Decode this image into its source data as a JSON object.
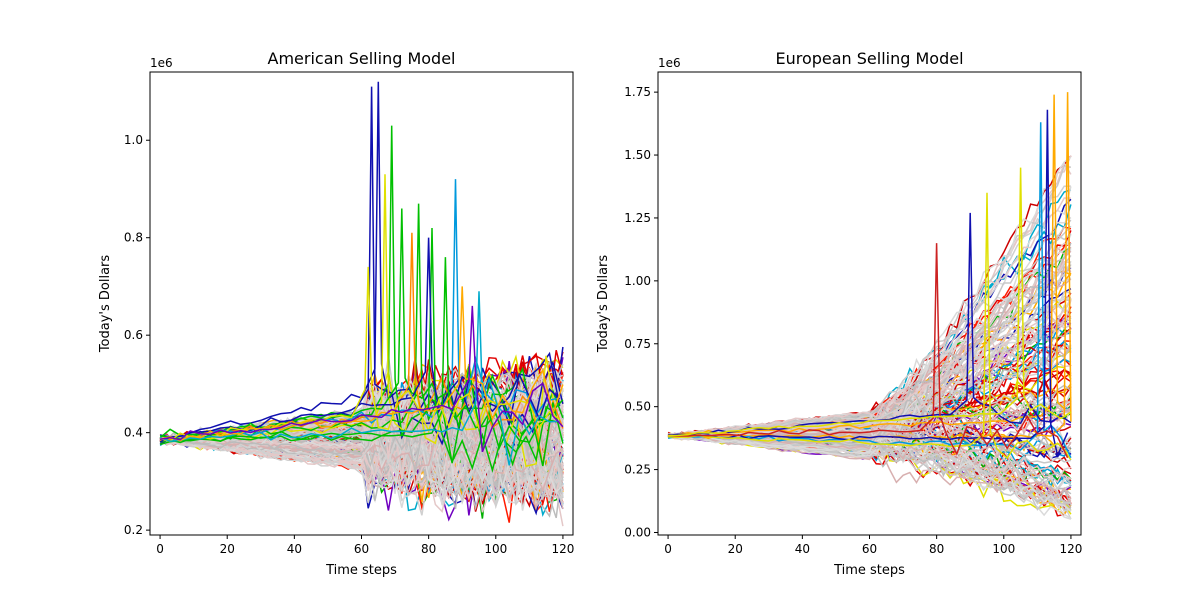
{
  "chart_data": [
    {
      "type": "line",
      "title": "American Selling Model",
      "xlabel": "Time steps",
      "ylabel": "Today's Dollars",
      "offset_text": "1e6",
      "xlim": [
        -3,
        123
      ],
      "ylim": [
        0.19,
        1.14
      ],
      "xticks": [
        0,
        20,
        40,
        60,
        80,
        100,
        120
      ],
      "xtick_labels": [
        "0",
        "20",
        "40",
        "60",
        "80",
        "100",
        "120"
      ],
      "yticks": [
        0.2,
        0.4,
        0.6,
        0.8,
        1.0
      ],
      "ytick_labels": [
        "0.2",
        "0.4",
        "0.6",
        "0.8",
        "1.0"
      ],
      "grid": false,
      "start_value": 0.385,
      "jump_step": 60,
      "end_step": 120,
      "pre_jump_range": [
        0.35,
        0.47
      ],
      "post_jump_range": [
        0.27,
        0.6
      ],
      "spikes": [
        {
          "x": 63,
          "y": 1.11,
          "color": "#1010b0"
        },
        {
          "x": 65,
          "y": 1.12,
          "color": "#1010b0"
        },
        {
          "x": 69,
          "y": 1.03,
          "color": "#00c000"
        },
        {
          "x": 67,
          "y": 0.93,
          "color": "#e0e000"
        },
        {
          "x": 72,
          "y": 0.86,
          "color": "#00c000"
        },
        {
          "x": 77,
          "y": 0.87,
          "color": "#00c000"
        },
        {
          "x": 75,
          "y": 0.81,
          "color": "#ff8800"
        },
        {
          "x": 88,
          "y": 0.92,
          "color": "#0099dd"
        },
        {
          "x": 81,
          "y": 0.82,
          "color": "#00c000"
        },
        {
          "x": 80,
          "y": 0.8,
          "color": "#1010b0"
        },
        {
          "x": 85,
          "y": 0.76,
          "color": "#00c000"
        },
        {
          "x": 62,
          "y": 0.74,
          "color": "#e0e000"
        },
        {
          "x": 95,
          "y": 0.69,
          "color": "#00aacc"
        },
        {
          "x": 90,
          "y": 0.7,
          "color": "#ffaa00"
        },
        {
          "x": 93,
          "y": 0.66,
          "color": "#7000c0"
        }
      ]
    },
    {
      "type": "line",
      "title": "European Selling Model",
      "xlabel": "Time steps",
      "ylabel": "Today's Dollars",
      "offset_text": "1e6",
      "xlim": [
        -3,
        123
      ],
      "ylim": [
        -0.01,
        1.83
      ],
      "xticks": [
        0,
        20,
        40,
        60,
        80,
        100,
        120
      ],
      "xtick_labels": [
        "0",
        "20",
        "40",
        "60",
        "80",
        "100",
        "120"
      ],
      "yticks": [
        0.0,
        0.25,
        0.5,
        0.75,
        1.0,
        1.25,
        1.5,
        1.75
      ],
      "ytick_labels": [
        "0.00",
        "0.25",
        "0.50",
        "0.75",
        "1.00",
        "1.25",
        "1.50",
        "1.75"
      ],
      "grid": false,
      "start_value": 0.385,
      "jump_step": 60,
      "end_step": 120,
      "pre_jump_range": [
        0.31,
        0.5
      ],
      "post_jump_range": [
        0.07,
        1.75
      ],
      "spikes": [
        {
          "x": 119,
          "y": 1.75,
          "color": "#ffaa00"
        },
        {
          "x": 115,
          "y": 1.74,
          "color": "#ffaa00"
        },
        {
          "x": 111,
          "y": 1.63,
          "color": "#0099dd"
        },
        {
          "x": 113,
          "y": 1.68,
          "color": "#1010b0"
        },
        {
          "x": 90,
          "y": 1.27,
          "color": "#1010b0"
        },
        {
          "x": 95,
          "y": 1.35,
          "color": "#e0e000"
        },
        {
          "x": 80,
          "y": 1.15,
          "color": "#cc2222"
        },
        {
          "x": 105,
          "y": 1.45,
          "color": "#e0e000"
        }
      ]
    }
  ]
}
